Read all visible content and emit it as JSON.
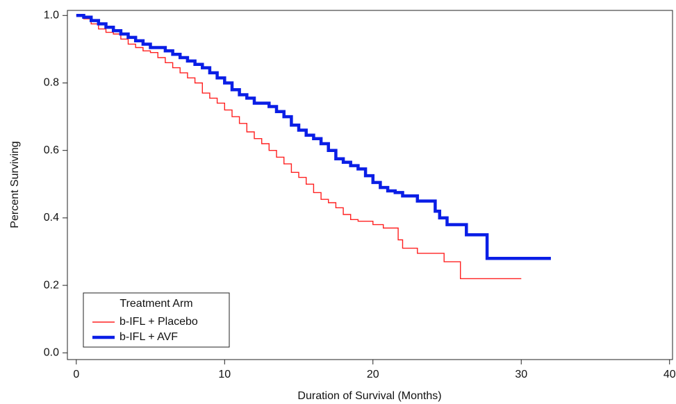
{
  "chart_data": {
    "type": "step",
    "xlabel": "Duration of Survival (Months)",
    "ylabel": "Percent Surviving",
    "xlim": [
      -0.6,
      40.2
    ],
    "ylim": [
      -0.02,
      1.015
    ],
    "xticks": [
      0,
      10,
      20,
      30,
      40
    ],
    "yticks": [
      {
        "value": 0,
        "label": "0.0"
      },
      0.2,
      0.4,
      0.6,
      0.8,
      {
        "value": 1,
        "label": "1.0"
      }
    ],
    "legend_title": "Treatment Arm",
    "legend": "lower left",
    "series": [
      {
        "name": "b-IFL + Placebo",
        "color": "#ff2020",
        "width": 1.4,
        "x": [
          0,
          0.5,
          0.5,
          1,
          1,
          1.5,
          1.5,
          2,
          2,
          2.5,
          2.5,
          3,
          3,
          3.5,
          3.5,
          4,
          4,
          4.5,
          4.5,
          5,
          5,
          5.5,
          5.5,
          6,
          6,
          6.5,
          6.5,
          7,
          7,
          7.5,
          7.5,
          8,
          8,
          8.5,
          8.5,
          9,
          9,
          9.5,
          9.5,
          10,
          10,
          10.5,
          10.5,
          11,
          11,
          11.5,
          11.5,
          12,
          12,
          12.5,
          12.5,
          13,
          13,
          13.5,
          13.5,
          14,
          14,
          14.5,
          14.5,
          15,
          15,
          15.5,
          15.5,
          16,
          16,
          16.5,
          16.5,
          17,
          17,
          17.5,
          17.5,
          18,
          18,
          18.5,
          18.5,
          19,
          19,
          20,
          20,
          20.7,
          20.7,
          21.7,
          21.7,
          22,
          22,
          23,
          23,
          24.8,
          24.8,
          25.9,
          25.9,
          30
        ],
        "values": [
          1,
          1,
          0.99,
          0.99,
          0.975,
          0.975,
          0.96,
          0.96,
          0.95,
          0.95,
          0.945,
          0.945,
          0.93,
          0.93,
          0.915,
          0.915,
          0.905,
          0.905,
          0.895,
          0.895,
          0.89,
          0.89,
          0.875,
          0.875,
          0.86,
          0.86,
          0.845,
          0.845,
          0.83,
          0.83,
          0.815,
          0.815,
          0.8,
          0.8,
          0.77,
          0.77,
          0.755,
          0.755,
          0.74,
          0.74,
          0.72,
          0.72,
          0.7,
          0.7,
          0.68,
          0.68,
          0.655,
          0.655,
          0.635,
          0.635,
          0.62,
          0.62,
          0.6,
          0.6,
          0.58,
          0.58,
          0.56,
          0.56,
          0.535,
          0.535,
          0.52,
          0.52,
          0.5,
          0.5,
          0.475,
          0.475,
          0.455,
          0.455,
          0.445,
          0.445,
          0.43,
          0.43,
          0.41,
          0.41,
          0.395,
          0.395,
          0.39,
          0.39,
          0.38,
          0.38,
          0.37,
          0.37,
          0.335,
          0.335,
          0.31,
          0.31,
          0.295,
          0.295,
          0.27,
          0.27,
          0.22,
          0.22
        ]
      },
      {
        "name": "b-IFL + AVF",
        "color": "#0a1ee6",
        "width": 4.5,
        "x": [
          0,
          0.5,
          0.5,
          1,
          1,
          1.5,
          1.5,
          2,
          2,
          2.5,
          2.5,
          3,
          3,
          3.5,
          3.5,
          4,
          4,
          4.5,
          4.5,
          5,
          5,
          6,
          6,
          6.5,
          6.5,
          7,
          7,
          7.5,
          7.5,
          8,
          8,
          8.5,
          8.5,
          9,
          9,
          9.5,
          9.5,
          10,
          10,
          10.5,
          10.5,
          11,
          11,
          11.5,
          11.5,
          12,
          12,
          13,
          13,
          13.5,
          13.5,
          14,
          14,
          14.5,
          14.5,
          15,
          15,
          15.5,
          15.5,
          16,
          16,
          16.5,
          16.5,
          17,
          17,
          17.5,
          17.5,
          18,
          18,
          18.5,
          18.5,
          19,
          19,
          19.5,
          19.5,
          20,
          20,
          20.5,
          20.5,
          21,
          21,
          21.5,
          21.5,
          22,
          22,
          23,
          23,
          24.2,
          24.2,
          24.5,
          24.5,
          25,
          25,
          26.3,
          26.3,
          27.7,
          27.7,
          32
        ],
        "values": [
          1,
          1,
          0.995,
          0.995,
          0.985,
          0.985,
          0.975,
          0.975,
          0.965,
          0.965,
          0.955,
          0.955,
          0.945,
          0.945,
          0.935,
          0.935,
          0.925,
          0.925,
          0.915,
          0.915,
          0.905,
          0.905,
          0.895,
          0.895,
          0.885,
          0.885,
          0.875,
          0.875,
          0.865,
          0.865,
          0.855,
          0.855,
          0.845,
          0.845,
          0.83,
          0.83,
          0.815,
          0.815,
          0.8,
          0.8,
          0.78,
          0.78,
          0.765,
          0.765,
          0.755,
          0.755,
          0.74,
          0.74,
          0.73,
          0.73,
          0.715,
          0.715,
          0.7,
          0.7,
          0.675,
          0.675,
          0.66,
          0.66,
          0.645,
          0.645,
          0.635,
          0.635,
          0.62,
          0.62,
          0.6,
          0.6,
          0.575,
          0.575,
          0.565,
          0.565,
          0.555,
          0.555,
          0.545,
          0.545,
          0.525,
          0.525,
          0.505,
          0.505,
          0.49,
          0.49,
          0.48,
          0.48,
          0.475,
          0.475,
          0.465,
          0.465,
          0.45,
          0.45,
          0.42,
          0.42,
          0.4,
          0.4,
          0.38,
          0.38,
          0.35,
          0.35,
          0.28,
          0.28
        ]
      }
    ]
  }
}
